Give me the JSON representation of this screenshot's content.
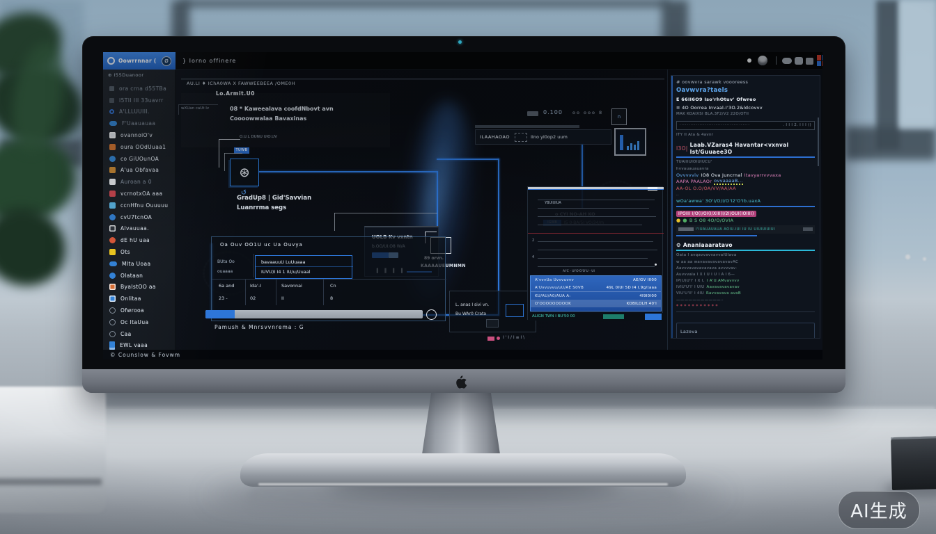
{
  "watermark": {
    "label": "AI生成"
  },
  "app": {
    "sidebar": {
      "logo_text": "Oowrrnnar (",
      "logo_badge": "Ø",
      "section_label": "⊕ I55Duanoor",
      "items": [
        {
          "label": "ora crna d55TBa",
          "color": "#66707e",
          "shape": "mini",
          "dim": true
        },
        {
          "label": "I5TII III 33uavrr",
          "color": "#5a636f",
          "shape": "mini",
          "dim": true
        },
        {
          "label": "A'LLLUUIII.",
          "color": "#2d6fd1",
          "shape": "ring",
          "dim": true
        },
        {
          "label": "F'Uaauauaa",
          "color": "#2f86d8",
          "shape": "oval",
          "dim": true
        },
        {
          "label": "ovannoiO'v",
          "color": "#e8edf2",
          "shape": "sqw"
        },
        {
          "label": "oura OOdUuaa1",
          "color": "#d8732a",
          "shape": "sq"
        },
        {
          "label": "co GiUOunOA",
          "color": "#2f86d8",
          "shape": "circ"
        },
        {
          "label": "A'ua Obfavaa",
          "color": "#cf8a2e",
          "shape": "sq"
        },
        {
          "label": "Auroan a 0",
          "color": "#f2f4f6",
          "shape": "sq",
          "dim": true
        },
        {
          "label": "vcrnotxOA aaa",
          "color": "#d4434d",
          "shape": "sq"
        },
        {
          "label": "ccnHfnu Ouuuuu",
          "color": "#58b8e8",
          "shape": "sq"
        },
        {
          "label": "cvU7tcnOA",
          "color": "#2e7fd6",
          "shape": "circ"
        },
        {
          "label": "Alvauuaa.",
          "color": "#2a2f36",
          "shape": "sqw"
        },
        {
          "label": "dE hU uaa",
          "color": "#e05534",
          "shape": "circ"
        },
        {
          "label": "Ots",
          "color": "#f2c918",
          "shape": "sq"
        },
        {
          "label": "MIta Uoaa",
          "color": "#2e7fd6",
          "shape": "oval"
        },
        {
          "label": "Olataan",
          "color": "#2e7fd6",
          "shape": "circ"
        },
        {
          "label": "ByalstOO aa",
          "color": "#d86a2e",
          "shape": "sqw"
        },
        {
          "label": "Onlitaa",
          "color": "#2e7fd6",
          "shape": "sqw"
        },
        {
          "label": "Ofwrooa",
          "color": "outline",
          "shape": "out"
        },
        {
          "label": "Oc ltaUua",
          "color": "outline",
          "shape": "out"
        },
        {
          "label": "Caa",
          "color": "outline",
          "shape": "out"
        },
        {
          "label": "EWL vaaa",
          "color": "#2e7fd6",
          "shape": "bar"
        }
      ]
    },
    "statusbar": {
      "text": "©  Counslow   &   Fovwm"
    },
    "topbar": {
      "title": "}  Iorno  offinere"
    },
    "canvas": {
      "breadcrumb": "AU.LI ♦ IChA0WA X FAWWEEBEEA /OME0H",
      "title": "Lo.Armit.U0",
      "left_tag": "wXUan caUt Iv",
      "heading1": "08 * Kaweealava coofdNbovt avn",
      "heading2": "Coooowwalaa Bavaxinas",
      "node_sublabel": "O.U.L  DUNU UIO.UV",
      "node_chip": "TUWB",
      "node_glyph": "⊛",
      "hook_glyph": "↺",
      "caption1": "GradUp8 | Gid'Savvian",
      "caption2": "Luanrrma segs",
      "toolbar": {
        "value": "0.100",
        "dots": "oo   ooo  8",
        "box_glyph": "n"
      },
      "panel2": {
        "title": "ILAAHAOAO",
        "caption": "IIno yI0op2 uum",
        "sub1": "o   CYI NO-AH KO",
        "chip": "IGWB",
        "sub2": "I5 0-BA/5I VO/34/m"
      },
      "card": {
        "title": "UOLB Kv vxntn",
        "sub": "b.OO/UI.O8 W/A",
        "ticks": "‖  ‖  ‖  ‖"
      },
      "node2": {
        "line1": "89 orvn.",
        "line2": "KAAAAUEUMNMN"
      },
      "grid": {
        "header": "Oa Ouv OO1U uc      Ua Ouvya",
        "row_label1": "BUta Oo",
        "row_label2": "ouaaaa",
        "cell_line1": "bavaauuU LuUuaaa",
        "cell_line2": "IUVU)I I4 1 IU/u/Uuaal",
        "cols": [
          "6a and",
          "Ida'-I",
          "Savonnai",
          "Cn"
        ],
        "vals": [
          "23 -",
          "02",
          "II",
          "8"
        ],
        "footer": "Pamush  &  Mnrsvvnrema   : G"
      },
      "panel3": {
        "line1": "L. anas I sivi vn.",
        "line2": "Bu WAr0 Crata",
        "marks": "I ' I / I ≡ I \\"
      }
    },
    "list_panel": {
      "tag1": "YBUIUIUA",
      "num1": "2",
      "num2": "4",
      "tag2": "AI'C - UI'O'O'O'U - UI",
      "rows": [
        {
          "k": "A'vvvUa Uvvvuvvv",
          "v": "AE/GV I000"
        },
        {
          "k": "A'Uvvuvvu/uU/AE S0VB",
          "v": "49L 0IUI 5D I4 I.9g/(aaa"
        },
        {
          "k": "KU/AU/A0/AUA A:",
          "v": "4I9I0I00"
        },
        {
          "k": "O'OOOOOOOOOK",
          "v": "KOBILOLH 40'I",
          "lt": true
        }
      ],
      "footer_left": "ALIGN TWN I BU'50 00"
    },
    "right_panel": {
      "lines": [
        {
          "segments": [
            {
              "t": "# oovwvra sarawk voooreess",
              "c": "gr"
            }
          ]
        },
        {
          "c": "gap1"
        },
        {
          "c": "fs9",
          "segments": [
            {
              "t": "Oavwvra?taels",
              "c": "bb"
            }
          ]
        },
        {
          "c": "gap1"
        },
        {
          "segments": [
            {
              "t": "Ε 66II6O9 Iso'rhOtuv' Ofwreo",
              "c": "wb"
            }
          ]
        },
        {
          "c": "gap1"
        },
        {
          "segments": [
            {
              "t": "≡ 4O Oorrea Invaal-I'3O.2&ldcovvv",
              "c": "w"
            }
          ]
        },
        {
          "segments": [
            {
              "t": "MAK KOAIXSI BLA.3F2/V2 22O/OTII",
              "c": "dims"
            }
          ]
        },
        {
          "c": "gap1"
        },
        {
          "c": "input",
          "segments": [
            {
              "t": "·······································",
              "c": "dash"
            },
            {
              "t": ". I I I 2. I I I ()",
              "c": "dims"
            }
          ]
        },
        {
          "segments": [
            {
              "t": "ITY II Ata & 4avnr",
              "c": "dims"
            }
          ]
        },
        {
          "c": "gap2"
        },
        {
          "c": "fs8 wrap",
          "segments": [
            {
              "t": "I3O|",
              "c": "ln"
            },
            {
              "t": " Laab.VZaras4 Havantar<vxnval Ist/Guuaee3O",
              "c": "wb"
            }
          ]
        },
        {
          "c": "hrb"
        },
        {
          "segments": [
            {
              "t": "TUAIIIUIOIUIUCU'",
              "c": "dims"
            }
          ]
        },
        {
          "segments": [
            {
              "t": "hvvauauauavra",
              "c": "dims"
            }
          ]
        },
        {
          "segments": [
            {
              "t": "Ovvvvviv",
              "c": "b"
            },
            {
              "t": "IO8 Ova Juncrnal",
              "c": "w"
            },
            {
              "t": "Itavyarrvvvaxa",
              "c": "p"
            }
          ]
        },
        {
          "segments": [
            {
              "t": "AAPA PAALAOr",
              "c": "p"
            },
            {
              "t": "ovvaaaaB...",
              "c": "bu"
            }
          ]
        },
        {
          "segments": [
            {
              "t": "AA-OL O.O/OA/VV/AA/AA",
              "c": "r"
            }
          ]
        },
        {
          "segments": [
            {
              "t": "..",
              "c": "dims"
            }
          ]
        },
        {
          "segments": [
            {
              "t": "wOa'awwa' 3O'I/O/I/O'I2'O'Ib.uaxA",
              "c": "t"
            }
          ]
        },
        {
          "c": "hrb"
        },
        {
          "c": "gap1"
        },
        {
          "segments": [
            {
              "t": "IPOIII I/O(I/OI(I/XIII)I/2I/OUI(IOIIII)",
              "c": "hl"
            }
          ]
        },
        {
          "segments": [
            {
              "t": "●",
              "c": "ydot"
            },
            {
              "t": "●",
              "c": "gdot"
            },
            {
              "t": "B S O8 4O/O/OVIA",
              "c": "g"
            }
          ]
        },
        {
          "c": "gap1"
        },
        {
          "c": "scroll",
          "segments": [
            {
              "t": "",
              "c": "sh"
            },
            {
              "t": "I'IUAUAUAUA AOIU.IUI IU IU UIUIUIUIUI",
              "c": "ts"
            },
            {
              "t": "",
              "c": "sg"
            }
          ]
        },
        {
          "c": "hrbh"
        },
        {
          "c": "gap2"
        },
        {
          "c": "fs8",
          "segments": [
            {
              "t": "⚙ Ananiaaaratavo",
              "c": "wb"
            }
          ]
        },
        {
          "c": "hrc"
        },
        {
          "segments": [
            {
              "t": "Oata I avqavvavvavvaIUIava",
              "c": "dims"
            }
          ]
        },
        {
          "segments": [
            {
              "t": "w aa aa wavavavavavavavAC",
              "c": "dims"
            }
          ]
        },
        {
          "segments": [
            {
              "t": "Aavvvavavavavava avvvvav·",
              "c": "dims"
            }
          ]
        },
        {
          "segments": [
            {
              "t": "Auvvvala I X I U I U I A I 6—",
              "c": "dims"
            }
          ]
        },
        {
          "segments": [
            {
              "t": "IP(U)U'I' I X I,",
              "c": "dims"
            },
            {
              "t": "I A'U.AMvavvvv",
              "c": "gs"
            }
          ]
        },
        {
          "segments": [
            {
              "t": "IVIU'U'I' I UIU",
              "c": "dims"
            },
            {
              "t": "Aavavavavavav",
              "c": "gs"
            }
          ]
        },
        {
          "segments": [
            {
              "t": "VIU'U'II' I 4IU",
              "c": "dims"
            },
            {
              "t": "Ravvavava avaB",
              "c": "gs"
            }
          ]
        },
        {
          "segments": [
            {
              "t": "———————————··",
              "c": "dims"
            }
          ]
        },
        {
          "segments": [
            {
              "t": "***********",
              "c": "stars"
            }
          ]
        },
        {
          "c": "hrd"
        },
        {
          "c": "gap3"
        },
        {
          "c": "box",
          "segments": [
            {
              "t": "Lazova",
              "c": "boxtext"
            }
          ]
        }
      ]
    }
  }
}
